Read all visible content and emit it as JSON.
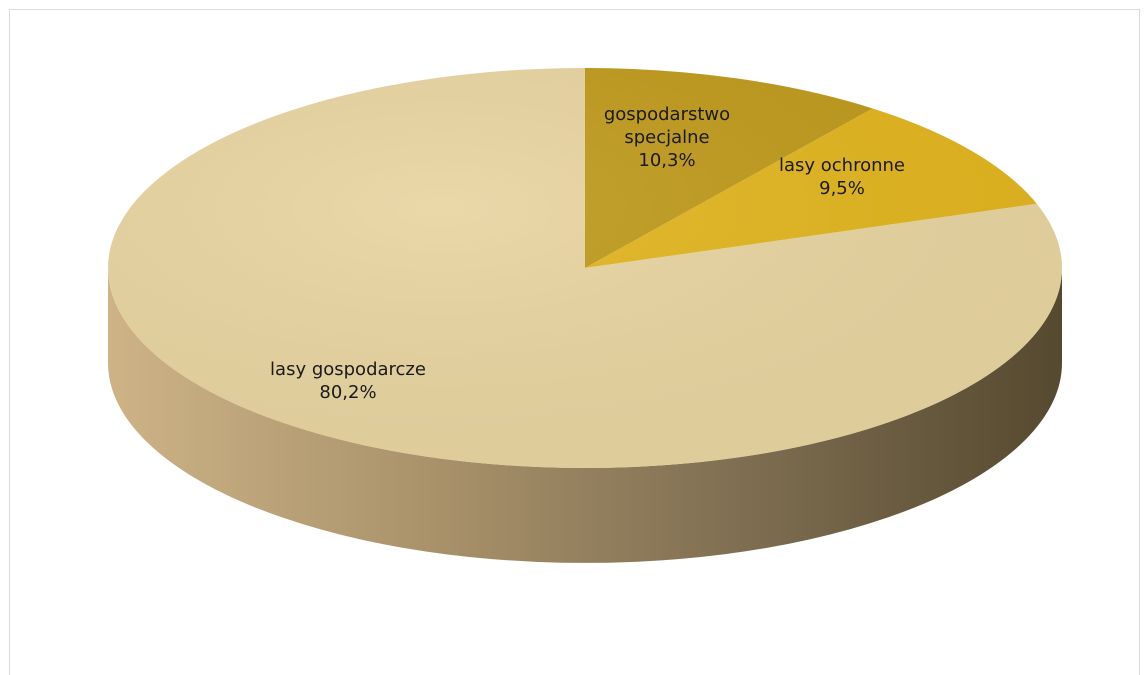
{
  "chart_data": {
    "type": "pie",
    "title": "",
    "slices": [
      {
        "label": "gospodarstwo specjalne",
        "label_lines": [
          "gospodarstwo",
          "specjalne"
        ],
        "value": 10.3,
        "value_text": "10,3%",
        "color": "#bf9a1b"
      },
      {
        "label": "lasy ochronne",
        "label_lines": [
          "lasy ochronne"
        ],
        "value": 9.5,
        "value_text": "9,5%",
        "color": "#e2b51e"
      },
      {
        "label": "lasy gospodarcze",
        "label_lines": [
          "lasy gospodarcze"
        ],
        "value": 80.2,
        "value_text": "80,2%",
        "color": "#e8d4a0"
      }
    ],
    "legend": "none",
    "style": "3d-pie"
  }
}
